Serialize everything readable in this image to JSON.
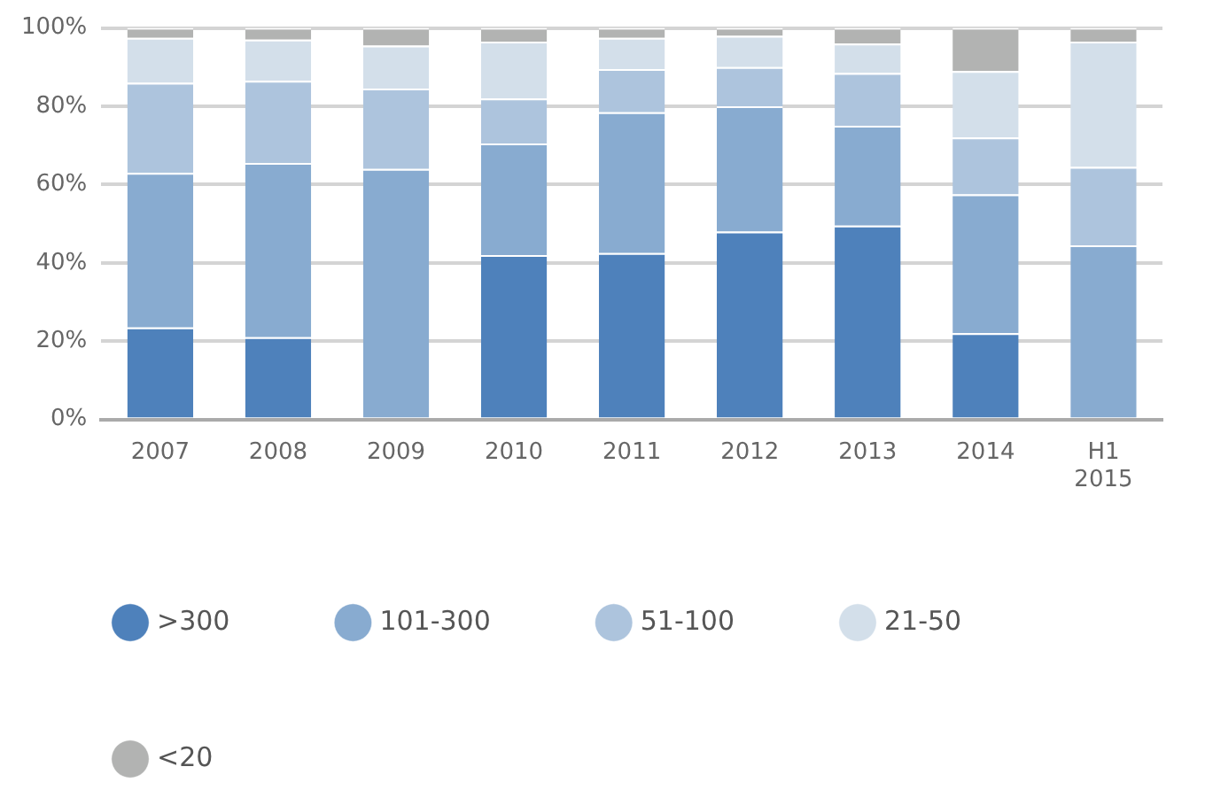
{
  "chart_data": {
    "type": "bar",
    "stacked": true,
    "categories": [
      "2007",
      "2008",
      "2009",
      "2010",
      "2011",
      "2012",
      "2013",
      "2014",
      "H1 2015"
    ],
    "series": [
      {
        "name": ">300",
        "color": "#4e81bb",
        "values": [
          23.5,
          21,
          0,
          42,
          42.5,
          48,
          49.5,
          22,
          0
        ]
      },
      {
        "name": "101-300",
        "color": "#88abd0",
        "values": [
          39.5,
          44.5,
          64,
          28.5,
          36,
          32,
          25.5,
          35.5,
          44.5
        ]
      },
      {
        "name": "51-100",
        "color": "#adc4dd",
        "values": [
          23,
          21,
          20.5,
          11.5,
          11,
          10,
          13.5,
          14.5,
          20
        ]
      },
      {
        "name": "21-50",
        "color": "#d3dfea",
        "values": [
          11.5,
          10.5,
          11,
          14.5,
          8,
          8,
          7.5,
          17,
          32
        ]
      },
      {
        "name": "<20",
        "color": "#b2b3b2",
        "values": [
          2.5,
          3,
          4.5,
          3.5,
          2.5,
          2,
          4,
          11,
          3.5
        ]
      }
    ],
    "ylim": [
      0,
      100
    ],
    "yticks": [
      {
        "value": 0,
        "label": "0%"
      },
      {
        "value": 20,
        "label": "20%"
      },
      {
        "value": 40,
        "label": "40%"
      },
      {
        "value": 60,
        "label": "60%"
      },
      {
        "value": 80,
        "label": "80%"
      },
      {
        "value": 100,
        "label": "100%"
      }
    ],
    "grid": "y",
    "legend": "bottom"
  }
}
